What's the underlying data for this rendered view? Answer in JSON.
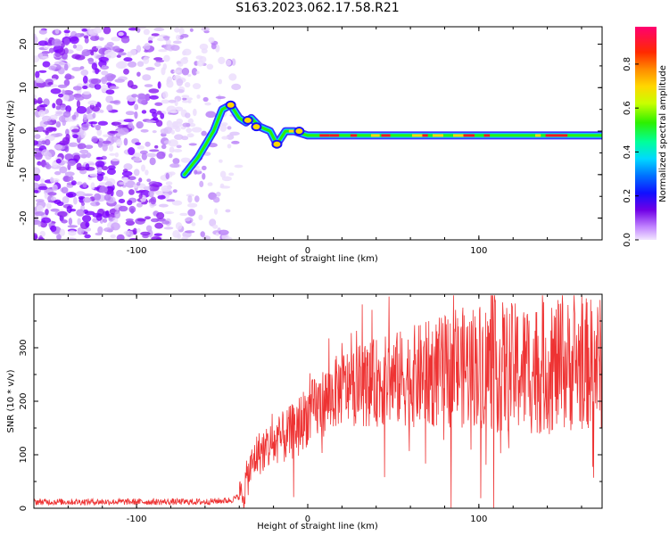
{
  "title": "S163.2023.062.17.58.R21",
  "chart_data": [
    {
      "type": "heatmap",
      "xlabel": "Height of straight line (km)",
      "ylabel": "Frequency (Hz)",
      "xlim": [
        -160,
        172
      ],
      "ylim": [
        -25,
        24
      ],
      "x_ticks": [
        -100,
        0,
        100
      ],
      "y_ticks": [
        -20,
        -10,
        0,
        10,
        20
      ],
      "colorbar": {
        "label": "Normalized spectral amplitude",
        "range": [
          0,
          0.97
        ],
        "ticks": [
          0.0,
          0.2,
          0.4,
          0.6,
          0.8
        ],
        "tick_labels": [
          "0.0",
          "0.2",
          "0.4",
          "0.6",
          "0.8"
        ]
      },
      "ridge": {
        "description_points_x": [
          -72,
          -64,
          -55,
          -50,
          -45,
          -40,
          -36,
          -33,
          -28,
          -22,
          -18,
          -13,
          -8,
          0,
          50,
          100,
          172
        ],
        "description_points_y": [
          -10,
          -6,
          0,
          5,
          6,
          3,
          2,
          3,
          1,
          0,
          -3,
          0,
          0,
          -1,
          -1,
          -1,
          -1
        ]
      }
    },
    {
      "type": "line",
      "xlabel": "Height of straight line (km)",
      "ylabel": "SNR (10 * v/v)",
      "xlim": [
        -160,
        172
      ],
      "ylim": [
        0,
        400
      ],
      "x_ticks": [
        -100,
        0,
        100
      ],
      "y_ticks": [
        0,
        100,
        200,
        300
      ],
      "color": "#ee3333",
      "envelope": {
        "x": [
          -160,
          -60,
          -45,
          -38,
          -35,
          -30,
          -20,
          -10,
          0,
          10,
          20,
          40,
          60,
          80,
          100,
          120,
          140,
          160,
          172
        ],
        "y": [
          12,
          12,
          15,
          25,
          60,
          100,
          120,
          140,
          175,
          200,
          225,
          235,
          245,
          255,
          270,
          260,
          262,
          270,
          270
        ]
      }
    }
  ]
}
